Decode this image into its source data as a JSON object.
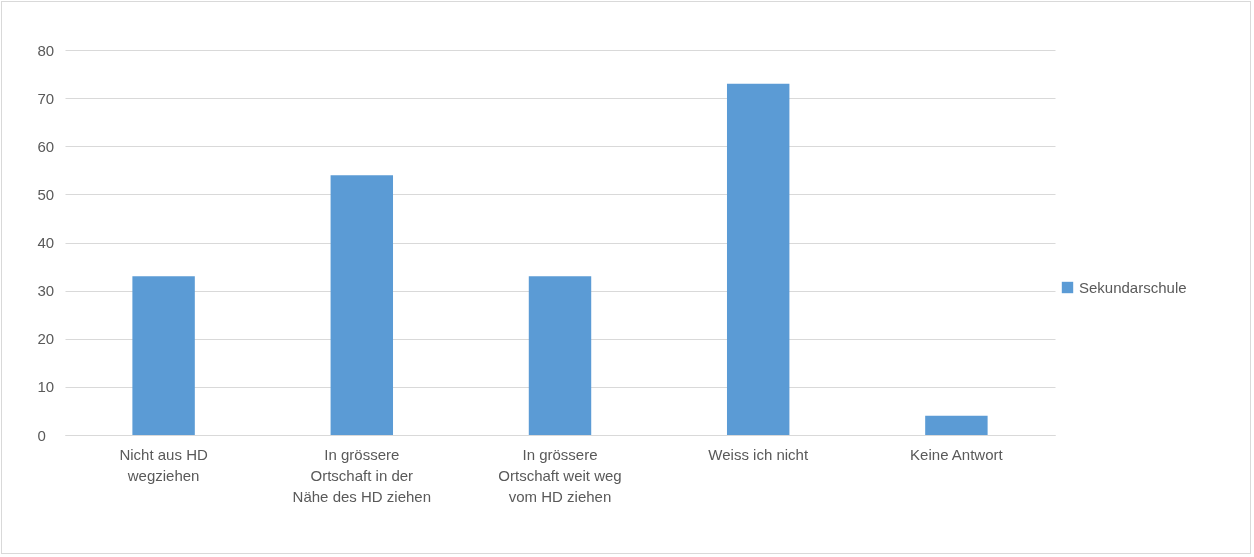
{
  "chart_data": {
    "type": "bar",
    "categories": [
      "Nicht aus HD wegziehen",
      "In grössere Ortschaft in der Nähe des HD ziehen",
      "In grössere Ortschaft weit weg vom HD ziehen",
      "Weiss ich nicht",
      "Keine Antwort"
    ],
    "series": [
      {
        "name": "Sekundarschule",
        "color": "#5b9bd5",
        "values": [
          33,
          54,
          33,
          73,
          4
        ]
      }
    ],
    "ylim": [
      0,
      80
    ],
    "yticks": [
      0,
      10,
      20,
      30,
      40,
      50,
      60,
      70,
      80
    ],
    "grid": "y",
    "legend": "right"
  }
}
